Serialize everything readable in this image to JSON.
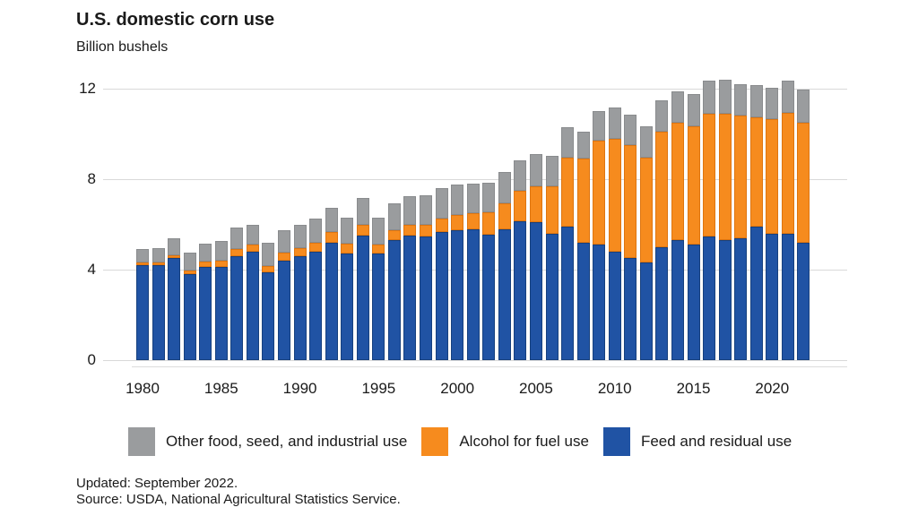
{
  "title": "U.S. domestic corn use",
  "subtitle": "Billion bushels",
  "footer": {
    "updated": "Updated: September 2022.",
    "source": "Source: USDA, National Agricultural Statistics Service."
  },
  "colors": {
    "feed": "#2053A4",
    "alcohol": "#F68B1E",
    "other": "#9A9C9E",
    "gridline": "#D9D9D9"
  },
  "legend": [
    {
      "label": "Other food, seed, and industrial use",
      "color": "#9A9C9E",
      "border": "#898B8D"
    },
    {
      "label": "Alcohol for fuel use",
      "color": "#F68B1E",
      "border": "#DE7510"
    },
    {
      "label": "Feed and residual use",
      "color": "#2053A4",
      "border": "#16407E"
    }
  ],
  "chart_data": {
    "type": "bar",
    "stacked": true,
    "title": "U.S. domestic corn use",
    "ylabel": "Billion bushels",
    "xlabel": "",
    "ylim": [
      0,
      12
    ],
    "yticks": [
      0,
      4,
      8,
      12
    ],
    "xticks": [
      1980,
      1985,
      1990,
      1995,
      2000,
      2005,
      2010,
      2015,
      2020
    ],
    "grid": true,
    "legend_position": "bottom",
    "categories": [
      1980,
      1981,
      1982,
      1983,
      1984,
      1985,
      1986,
      1987,
      1988,
      1989,
      1990,
      1991,
      1992,
      1993,
      1994,
      1995,
      1996,
      1997,
      1998,
      1999,
      2000,
      2001,
      2002,
      2003,
      2004,
      2005,
      2006,
      2007,
      2008,
      2009,
      2010,
      2011,
      2012,
      2013,
      2014,
      2015,
      2016,
      2017,
      2018,
      2019,
      2020,
      2021,
      2022
    ],
    "series": [
      {
        "name": "Feed and residual use",
        "color": "#2053A4",
        "border": "#16407E",
        "values": [
          4.2,
          4.2,
          4.5,
          3.8,
          4.1,
          4.1,
          4.6,
          4.8,
          3.9,
          4.4,
          4.6,
          4.8,
          5.2,
          4.7,
          5.5,
          4.7,
          5.3,
          5.5,
          5.45,
          5.65,
          5.75,
          5.8,
          5.55,
          5.8,
          6.15,
          6.1,
          5.6,
          5.9,
          5.2,
          5.1,
          4.8,
          4.5,
          4.3,
          5.0,
          5.3,
          5.1,
          5.45,
          5.3,
          5.4,
          5.9,
          5.6,
          5.6,
          5.2
        ]
      },
      {
        "name": "Alcohol for fuel use",
        "color": "#F68B1E",
        "border": "#DE7510",
        "values": [
          0.1,
          0.1,
          0.15,
          0.15,
          0.25,
          0.3,
          0.3,
          0.3,
          0.25,
          0.35,
          0.35,
          0.4,
          0.45,
          0.45,
          0.5,
          0.4,
          0.45,
          0.5,
          0.55,
          0.6,
          0.65,
          0.7,
          1.0,
          1.15,
          1.35,
          1.6,
          2.1,
          3.05,
          3.7,
          4.6,
          5.0,
          5.0,
          4.65,
          5.1,
          5.2,
          5.25,
          5.45,
          5.6,
          5.4,
          4.85,
          5.05,
          5.35,
          5.3
        ]
      },
      {
        "name": "Other food, seed, and industrial use",
        "color": "#9A9C9E",
        "border": "#898B8D",
        "values": [
          0.6,
          0.65,
          0.75,
          0.8,
          0.8,
          0.85,
          0.95,
          0.9,
          1.05,
          1.0,
          1.05,
          1.05,
          1.1,
          1.15,
          1.15,
          1.2,
          1.2,
          1.25,
          1.3,
          1.35,
          1.35,
          1.3,
          1.3,
          1.35,
          1.35,
          1.4,
          1.35,
          1.35,
          1.2,
          1.3,
          1.35,
          1.35,
          1.4,
          1.4,
          1.4,
          1.4,
          1.45,
          1.5,
          1.4,
          1.4,
          1.4,
          1.4,
          1.45
        ]
      }
    ]
  }
}
